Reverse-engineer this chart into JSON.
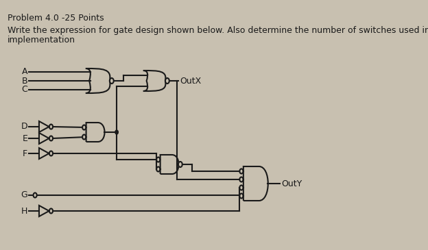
{
  "bg_color": "#c8c0b0",
  "text_color": "#1a1a1a",
  "line_color": "#1a1a1a",
  "title": "Problem 4.0 -25 Points",
  "subtitle": "Write the expression for gate design shown below. Also determine the number of switches used in the",
  "subtitle2": "implementation",
  "title_fontsize": 9,
  "subtitle_fontsize": 9,
  "figsize": [
    6.24,
    3.65
  ],
  "dpi": 100
}
